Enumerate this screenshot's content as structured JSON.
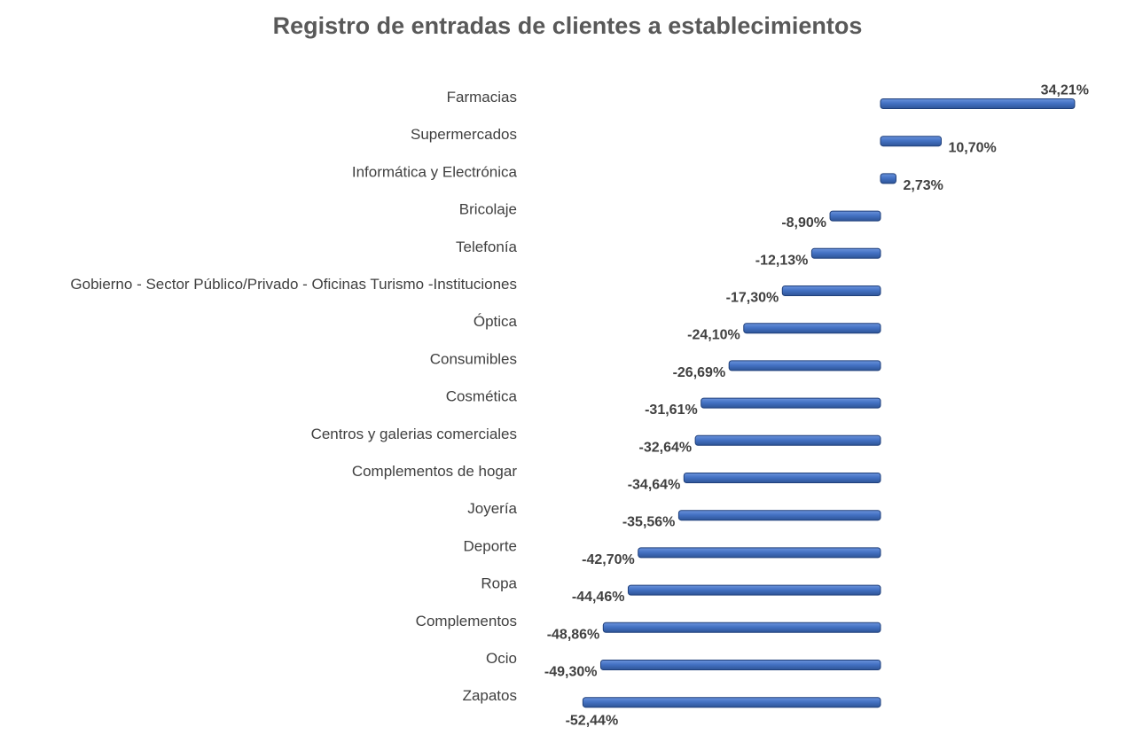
{
  "chart_data": {
    "type": "bar",
    "orientation": "horizontal",
    "title": "Registro de entradas de clientes a establecimientos",
    "xlabel": "",
    "ylabel": "",
    "grid": false,
    "legend": "none",
    "bar_color": "#4472C4",
    "bar_edge_color": "#1F3F7A",
    "categories": [
      "Farmacias",
      "Supermercados",
      "Informática y Electrónica",
      "Bricolaje",
      "Telefonía",
      "Gobierno - Sector Público/Privado - Oficinas Turismo -Instituciones",
      "Óptica",
      "Consumibles",
      "Cosmética",
      "Centros y galerias comerciales",
      "Complementos de hogar",
      "Joyería",
      "Deporte",
      "Ropa",
      "Complementos",
      "Ocio",
      "Zapatos"
    ],
    "values": [
      34.21,
      10.7,
      2.73,
      -8.9,
      -12.13,
      -17.3,
      -24.1,
      -26.69,
      -31.61,
      -32.64,
      -34.64,
      -35.56,
      -42.7,
      -44.46,
      -48.86,
      -49.3,
      -52.44
    ],
    "value_labels": [
      "34,21%",
      "10,70%",
      "2,73%",
      "-8,90%",
      "-12,13%",
      "-17,30%",
      "-24,10%",
      "-26,69%",
      "-31,61%",
      "-32,64%",
      "-34,64%",
      "-35,56%",
      "-42,70%",
      "-44,46%",
      "-48,86%",
      "-49,30%",
      "-52,44%"
    ]
  }
}
